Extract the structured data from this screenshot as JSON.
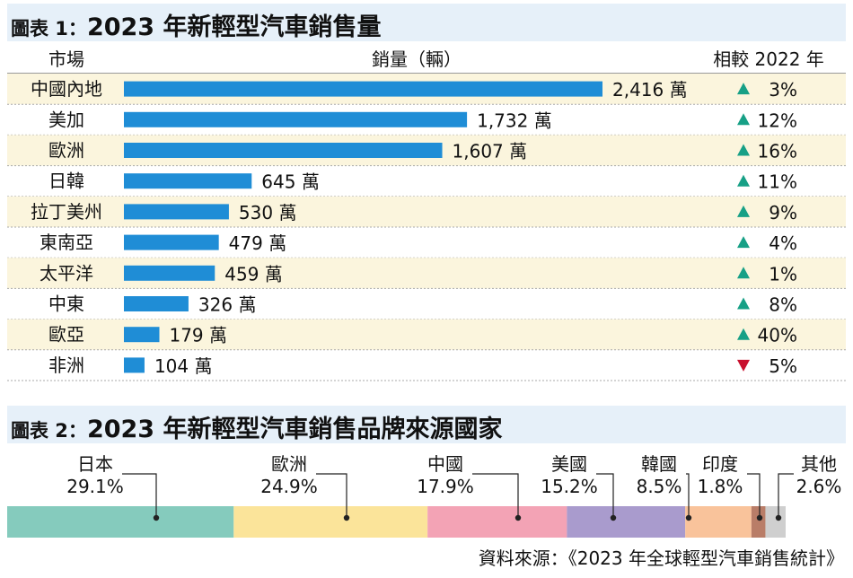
{
  "chart1": {
    "title_prefix": "圖表 1：",
    "title": "2023 年新輕型汽車銷售量",
    "col_market": "市場",
    "col_sales": "銷量（輛）",
    "col_change": "相較 2022 年",
    "unit": "萬",
    "accent_color": "#1f8dd6",
    "up_color": "#17a086",
    "down_color": "#c8102e",
    "stripe_color": "#fbf5dd"
  },
  "chart2": {
    "title_prefix": "圖表 2：",
    "title": "2023 年新輕型汽車銷售品牌來源國家"
  },
  "source": "資料來源：《2023 年全球輕型汽車銷售統計》",
  "chart_data": [
    {
      "type": "bar",
      "orientation": "horizontal",
      "categories": [
        "中國內地",
        "美加",
        "歐洲",
        "日韓",
        "拉丁美州",
        "東南亞",
        "太平洋",
        "中東",
        "歐亞",
        "非洲"
      ],
      "values": [
        2416,
        1732,
        1607,
        645,
        530,
        479,
        459,
        326,
        179,
        104
      ],
      "value_labels": [
        "2,416 萬",
        "1,732 萬",
        "1,607 萬",
        "645 萬",
        "530 萬",
        "479 萬",
        "459 萬",
        "326 萬",
        "179 萬",
        "104 萬"
      ],
      "change_direction": [
        "up",
        "up",
        "up",
        "up",
        "up",
        "up",
        "up",
        "up",
        "up",
        "down"
      ],
      "change_labels": [
        "3%",
        "12%",
        "16%",
        "11%",
        "9%",
        "4%",
        "1%",
        "8%",
        "40%",
        "5%"
      ],
      "change_values": [
        3,
        12,
        16,
        11,
        9,
        4,
        1,
        8,
        40,
        -5
      ],
      "xlim": [
        0,
        2416
      ]
    },
    {
      "type": "bar",
      "stacked": true,
      "orientation": "horizontal",
      "categories": [
        "日本",
        "歐洲",
        "中國",
        "美國",
        "韓國",
        "印度",
        "其他"
      ],
      "values": [
        29.1,
        24.9,
        17.9,
        15.2,
        8.5,
        1.8,
        2.6
      ],
      "value_labels": [
        "29.1%",
        "24.9%",
        "17.9%",
        "15.2%",
        "8.5%",
        "1.8%",
        "2.6%"
      ],
      "colors": [
        "#85cbbd",
        "#fbe49a",
        "#f3a3b5",
        "#a99bcd",
        "#f9c39b",
        "#b97d68",
        "#cfcfcf"
      ]
    }
  ]
}
